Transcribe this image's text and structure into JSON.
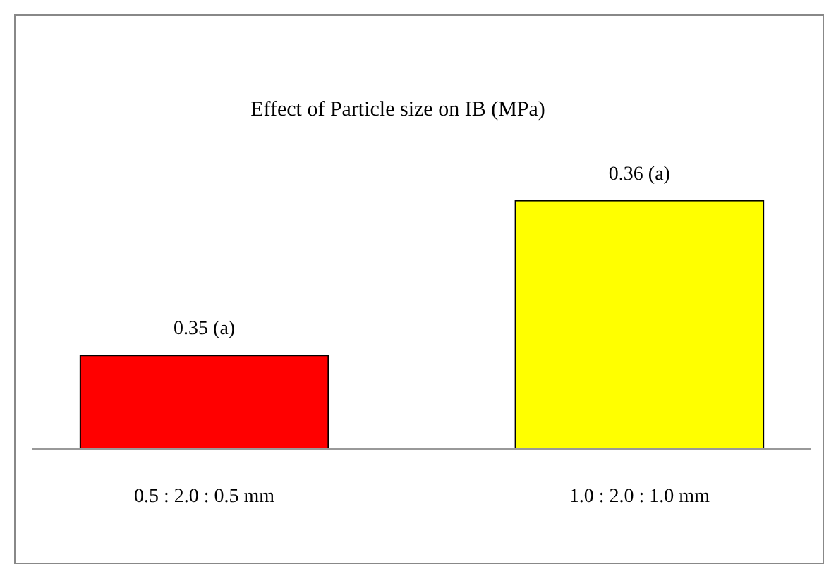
{
  "chart_data": {
    "type": "bar",
    "title": "Effect of Particle size on IB (MPa)",
    "categories": [
      "0.5 : 2.0 : 0.5 mm",
      "1.0 : 2.0 : 1.0 mm"
    ],
    "values": [
      0.35,
      0.36
    ],
    "colors": [
      "#ff0000",
      "#ffff00"
    ],
    "value_labels": [
      "0.35 (a)",
      "0.36 (a)"
    ],
    "ylim": [
      0.344,
      0.372
    ]
  }
}
